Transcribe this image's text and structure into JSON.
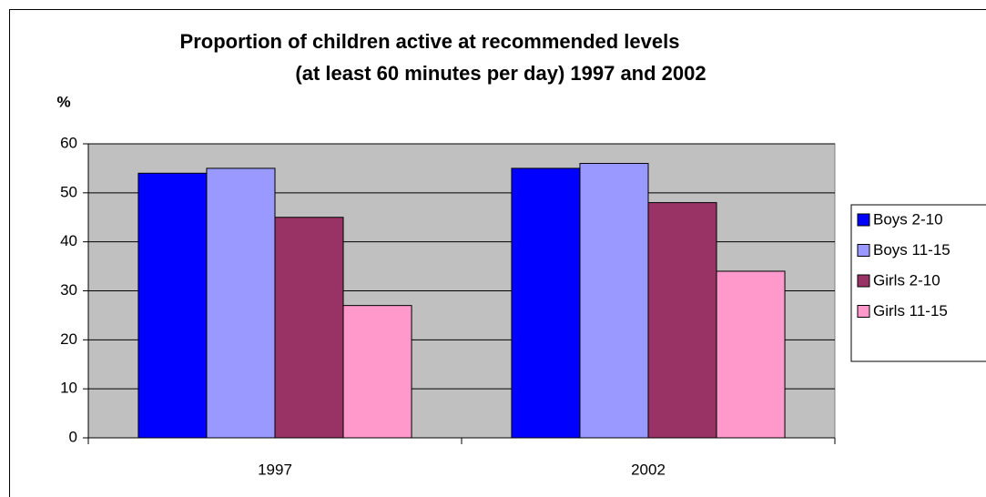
{
  "chart_data": {
    "type": "bar",
    "title": [
      "Proportion of children active at recommended levels",
      "(at least 60 minutes per day) 1997 and 2002"
    ],
    "y_label": "%",
    "categories": [
      "1997",
      "2002"
    ],
    "series": [
      {
        "name": "Boys 2-10",
        "color": "#0000ff",
        "values": [
          54,
          55
        ]
      },
      {
        "name": "Boys 11-15",
        "color": "#9999ff",
        "values": [
          55,
          56
        ]
      },
      {
        "name": "Girls 2-10",
        "color": "#993366",
        "values": [
          45,
          48
        ]
      },
      {
        "name": "Girls 11-15",
        "color": "#ff99cc",
        "values": [
          27,
          34
        ]
      }
    ],
    "ylim": [
      0,
      60
    ],
    "yticks": [
      0,
      10,
      20,
      30,
      40,
      50,
      60
    ],
    "grid": true,
    "legend": "right"
  }
}
